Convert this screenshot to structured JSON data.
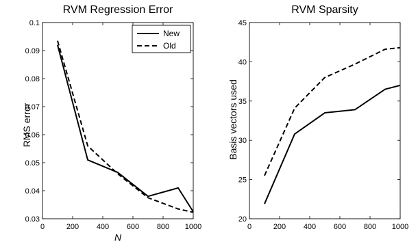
{
  "chart_data": [
    {
      "type": "line",
      "title": "RVM Regression Error",
      "xlabel": "N",
      "ylabel": "RMS error",
      "xlim": [
        0,
        1000
      ],
      "ylim": [
        0.03,
        0.1
      ],
      "xticks": [
        0,
        200,
        400,
        600,
        800,
        1000
      ],
      "yticks": [
        0.03,
        0.04,
        0.05,
        0.06,
        0.07,
        0.08,
        0.09,
        0.1
      ],
      "ytick_labels": [
        "0.03",
        "0.04",
        "0.05",
        "0.06",
        "0.07",
        "0.08",
        "0.09",
        "0.1"
      ],
      "grid": false,
      "legend": "top-right",
      "series": [
        {
          "name": "New",
          "style": "solid",
          "x": [
            100,
            300,
            500,
            700,
            900,
            1000
          ],
          "y": [
            0.092,
            0.051,
            0.0465,
            0.038,
            0.041,
            0.0325
          ]
        },
        {
          "name": "Old",
          "style": "dashed",
          "x": [
            100,
            300,
            500,
            700,
            900,
            1000
          ],
          "y": [
            0.0935,
            0.056,
            0.046,
            0.0375,
            0.0335,
            0.0323
          ]
        }
      ]
    },
    {
      "type": "line",
      "title": "RVM Sparsity",
      "xlabel": "",
      "ylabel": "Basis vectors used",
      "xlim": [
        0,
        1000
      ],
      "ylim": [
        20,
        45
      ],
      "xticks": [
        0,
        200,
        400,
        600,
        800,
        1000
      ],
      "yticks": [
        20,
        25,
        30,
        35,
        40,
        45
      ],
      "ytick_labels": [
        "20",
        "25",
        "30",
        "35",
        "40",
        "45"
      ],
      "grid": false,
      "legend": "",
      "series": [
        {
          "style": "solid",
          "x": [
            100,
            300,
            500,
            700,
            900,
            1000
          ],
          "y": [
            21.9,
            30.8,
            33.5,
            33.9,
            36.5,
            37.0
          ]
        },
        {
          "style": "dashed",
          "x": [
            100,
            300,
            500,
            700,
            900,
            1000
          ],
          "y": [
            25.5,
            34.1,
            38.0,
            39.7,
            41.6,
            41.8
          ]
        }
      ]
    }
  ]
}
